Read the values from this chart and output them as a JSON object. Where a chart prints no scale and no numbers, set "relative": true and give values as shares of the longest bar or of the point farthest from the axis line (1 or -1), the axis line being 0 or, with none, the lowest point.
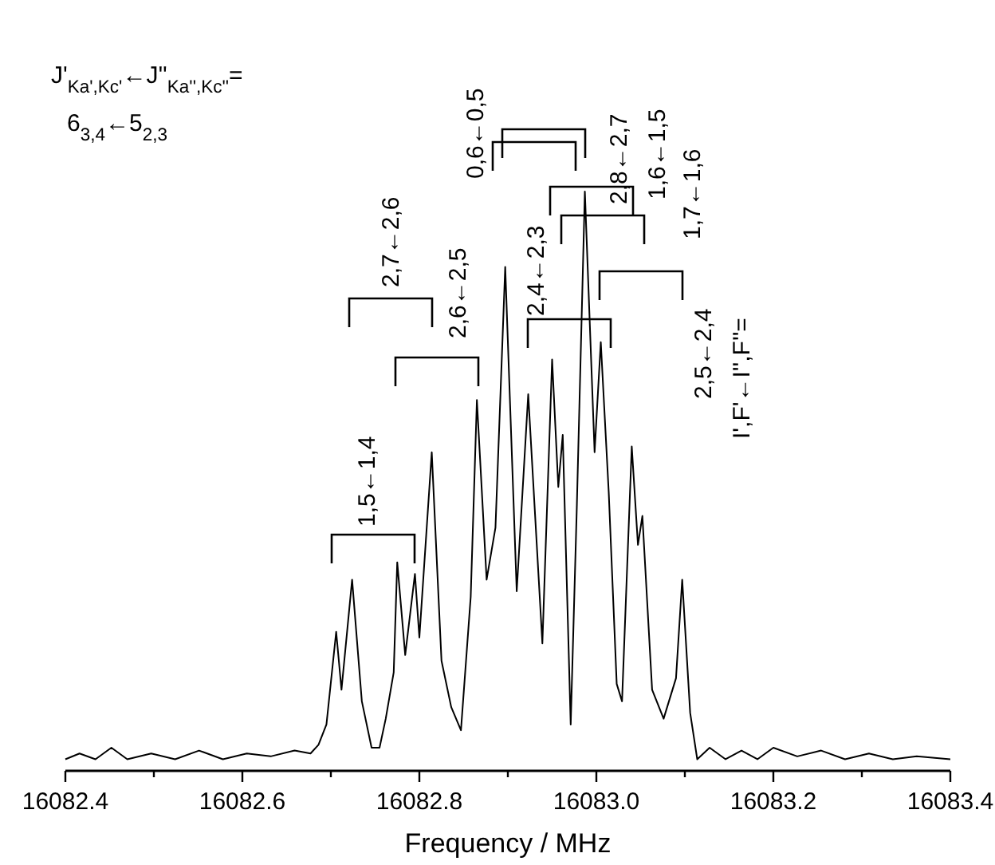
{
  "chart_data": {
    "type": "line",
    "relative": true,
    "xlabel": "Frequency / MHz",
    "xlim": [
      16082.4,
      16083.4
    ],
    "xticks": [
      16082.4,
      {
        "value": 16082.5,
        "label": null
      },
      16082.6,
      {
        "value": 16082.7,
        "label": null
      },
      16082.8,
      {
        "value": 16082.9,
        "label": null
      },
      {
        "value": 16083,
        "label": "16083.0"
      },
      {
        "value": 16083.1,
        "label": null
      },
      16083.2,
      {
        "value": 16083.3,
        "label": null
      },
      16083.4
    ],
    "series": [
      {
        "color": "#000000",
        "x": [
          16082.4,
          16082.416,
          16082.434,
          16082.452,
          16082.47,
          16082.497,
          16082.524,
          16082.551,
          16082.578,
          16082.605,
          16082.632,
          16082.659,
          16082.677,
          16082.686,
          16082.695,
          16082.706,
          16082.712,
          16082.724,
          16082.735,
          16082.746,
          16082.755,
          16082.762,
          16082.771,
          16082.775,
          16082.784,
          16082.795,
          16082.8,
          16082.814,
          16082.825,
          16082.836,
          16082.847,
          16082.858,
          16082.865,
          16082.876,
          16082.886,
          16082.897,
          16082.91,
          16082.923,
          16082.939,
          16082.95,
          16082.957,
          16082.962,
          16082.971,
          16082.978,
          16082.987,
          16082.998,
          16083.005,
          16083.014,
          16083.023,
          16083.029,
          16083.04,
          16083.047,
          16083.052,
          16083.063,
          16083.076,
          16083.09,
          16083.097,
          16083.106,
          16083.114,
          16083.128,
          16083.146,
          16083.164,
          16083.182,
          16083.2,
          16083.227,
          16083.254,
          16083.281,
          16083.308,
          16083.335,
          16083.362,
          16083.4
        ],
        "values": [
          0.02,
          0.03,
          0.02,
          0.04,
          0.02,
          0.03,
          0.02,
          0.035,
          0.02,
          0.03,
          0.025,
          0.035,
          0.03,
          0.045,
          0.08,
          0.24,
          0.14,
          0.33,
          0.12,
          0.04,
          0.04,
          0.09,
          0.17,
          0.36,
          0.2,
          0.34,
          0.23,
          0.55,
          0.19,
          0.11,
          0.07,
          0.3,
          0.64,
          0.33,
          0.42,
          0.87,
          0.31,
          0.65,
          0.22,
          0.71,
          0.49,
          0.58,
          0.08,
          0.46,
          1.0,
          0.55,
          0.74,
          0.48,
          0.15,
          0.12,
          0.56,
          0.39,
          0.44,
          0.14,
          0.09,
          0.16,
          0.33,
          0.1,
          0.02,
          0.04,
          0.02,
          0.035,
          0.02,
          0.04,
          0.025,
          0.035,
          0.02,
          0.03,
          0.02,
          0.025,
          0.02
        ]
      }
    ],
    "annotations": [
      "1,5←1,4",
      "2,7←2,6",
      "2,6←2,5",
      "0,6←0,5",
      "2,8←2,7",
      "1,6←1,5",
      "1,7←1,6",
      "2,4←2,3",
      "2,5←2,4",
      "I',F'←I'',F''=",
      "J'$_{Ka',Kc'}$←J''$_{Ka'',Kc''}$=",
      "6$_{3,4}$←5$_{2,3}$"
    ]
  }
}
